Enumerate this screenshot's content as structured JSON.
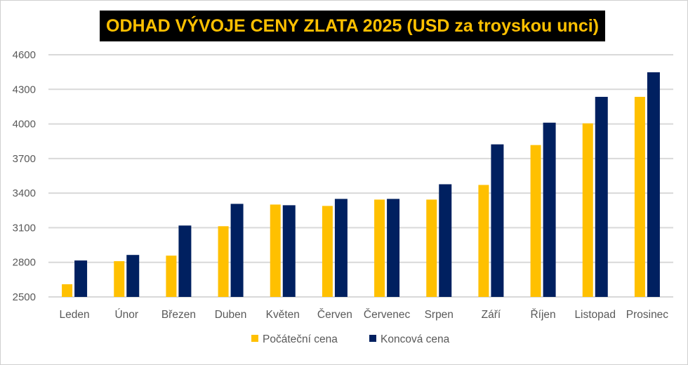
{
  "chart_data": {
    "type": "bar",
    "title": "ODHAD VÝVOJE CENY ZLATA 2025 (USD za troyskou unci)",
    "xlabel": "",
    "ylabel": "",
    "ylim": [
      2500,
      4600
    ],
    "yticks": [
      2500,
      2800,
      3100,
      3400,
      3700,
      4000,
      4300,
      4600
    ],
    "grid": true,
    "legend_position": "bottom",
    "categories": [
      "Leden",
      "Únor",
      "Březen",
      "Duben",
      "Květen",
      "Červen",
      "Červenec",
      "Srpen",
      "Září",
      "Říjen",
      "Listopad",
      "Prosinec"
    ],
    "series": [
      {
        "name": "Počáteční cena",
        "color": "#FFC000",
        "values": [
          2610,
          2810,
          2858,
          3113,
          3301,
          3289,
          3344,
          3344,
          3471,
          3817,
          4005,
          4235
        ]
      },
      {
        "name": "Koncová cena",
        "color": "#002060",
        "values": [
          2816,
          2864,
          3119,
          3307,
          3295,
          3350,
          3350,
          3477,
          3823,
          4011,
          4235,
          4448
        ]
      }
    ]
  }
}
